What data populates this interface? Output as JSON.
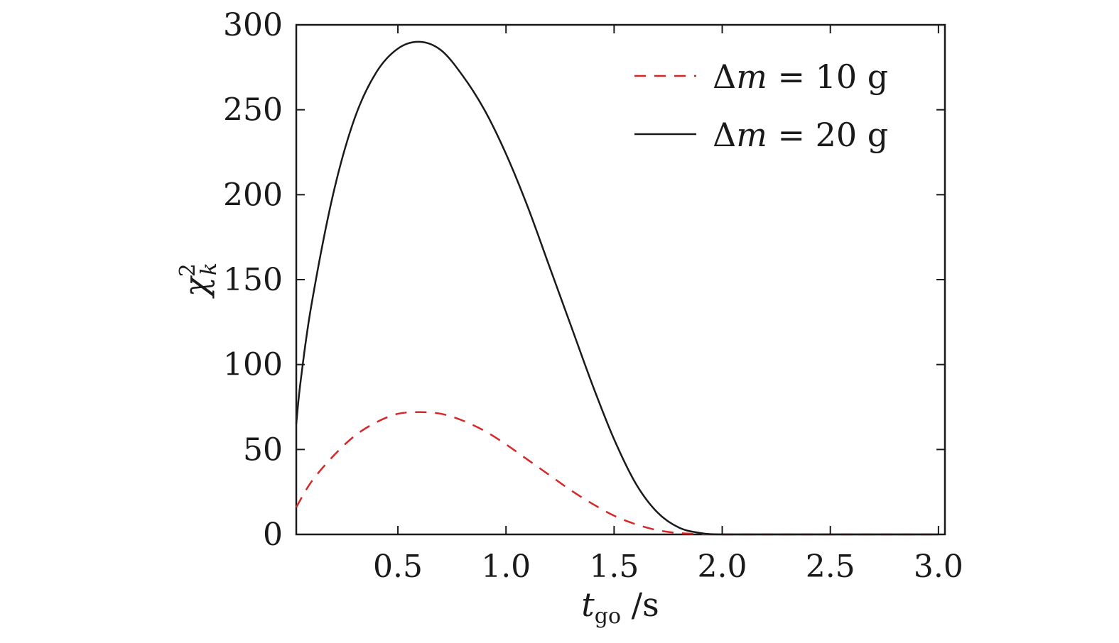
{
  "chart_data": {
    "type": "line",
    "xlabel": {
      "main": "t",
      "sub": "go",
      "unit": " /s"
    },
    "ylabel": {
      "main": "χ",
      "sup": "2",
      "sub": "k"
    },
    "xlim": [
      0.03,
      3.03
    ],
    "ylim": [
      0,
      300
    ],
    "xticks": [
      0.5,
      1.0,
      1.5,
      2.0,
      2.5,
      3.0
    ],
    "xtick_labels": [
      "0.5",
      "1.0",
      "1.5",
      "2.0",
      "2.5",
      "3.0"
    ],
    "yticks": [
      0,
      50,
      100,
      150,
      200,
      250,
      300
    ],
    "ytick_labels": [
      "0",
      "50",
      "100",
      "150",
      "200",
      "250",
      "300"
    ],
    "grid": false,
    "legend_position": "top-right",
    "series": [
      {
        "name": "Δm = 10 g",
        "label_prefix": "Δ",
        "label_var": "m",
        "label_rest": " = 10 g",
        "color": "#d62728",
        "style": "dashed",
        "x": [
          0.03,
          0.1,
          0.2,
          0.3,
          0.4,
          0.5,
          0.6,
          0.7,
          0.8,
          0.9,
          1.0,
          1.1,
          1.2,
          1.3,
          1.4,
          1.5,
          1.6,
          1.7,
          1.8,
          1.9,
          2.0,
          2.2,
          2.5,
          3.0
        ],
        "y": [
          16,
          31,
          46,
          58,
          66,
          71,
          72,
          71,
          67,
          61,
          53,
          44,
          35,
          26,
          18,
          11,
          6,
          2.5,
          0.8,
          0.2,
          0,
          0,
          0,
          0
        ]
      },
      {
        "name": "Δm = 20 g",
        "label_prefix": "Δ",
        "label_var": "m",
        "label_rest": " = 20 g",
        "color": "#1a1a1a",
        "style": "solid",
        "x": [
          0.03,
          0.05,
          0.1,
          0.2,
          0.3,
          0.4,
          0.5,
          0.6,
          0.7,
          0.8,
          0.9,
          1.0,
          1.1,
          1.2,
          1.3,
          1.4,
          1.5,
          1.6,
          1.7,
          1.8,
          1.9,
          2.0,
          2.2,
          2.5,
          3.0
        ],
        "y": [
          65,
          90,
          135,
          200,
          245,
          272,
          286,
          290,
          285,
          270,
          250,
          224,
          193,
          158,
          123,
          88,
          56,
          30,
          13,
          4,
          0.8,
          0,
          0,
          0,
          0
        ]
      }
    ]
  }
}
